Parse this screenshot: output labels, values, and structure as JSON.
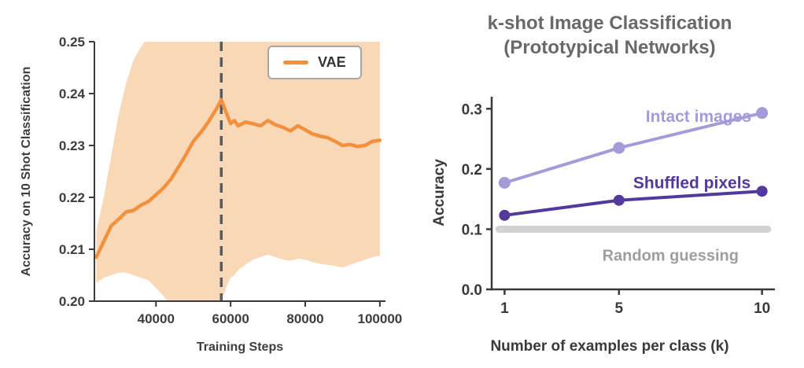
{
  "chart_data": [
    {
      "id": "vae-training-curve",
      "type": "line",
      "title": "",
      "xlabel": "Training Steps",
      "ylabel": "Accuracy on 10 Shot Classification",
      "xlim": [
        23500,
        101500
      ],
      "ylim": [
        0.2,
        0.25
      ],
      "grid": false,
      "xticks": {
        "values": [
          40000,
          60000,
          80000,
          100000
        ],
        "labels": [
          "40000",
          "60000",
          "80000",
          "100000"
        ]
      },
      "yticks": {
        "values": [
          0.2,
          0.21,
          0.22,
          0.23,
          0.24,
          0.25
        ],
        "labels": [
          "0.20",
          "0.21",
          "0.22",
          "0.23",
          "0.24",
          "0.25"
        ]
      },
      "vline": {
        "x": 57500,
        "color": "#5a5a5a",
        "style": "dashed"
      },
      "legend": {
        "position": "top-right",
        "entries": [
          "VAE"
        ]
      },
      "series": [
        {
          "name": "VAE",
          "color": "#f2913d",
          "band_color": "#f9d8b8",
          "width": 4.5,
          "markers": false,
          "x": [
            24000,
            26000,
            28000,
            30000,
            32000,
            34000,
            36000,
            38000,
            40000,
            42000,
            44000,
            46000,
            48000,
            50000,
            52000,
            54000,
            56000,
            57500,
            59000,
            60000,
            61000,
            62000,
            64000,
            66000,
            68000,
            70000,
            72000,
            74000,
            76000,
            78000,
            80000,
            82000,
            84000,
            86000,
            88000,
            90000,
            92000,
            94000,
            96000,
            98000,
            100000
          ],
          "y": [
            0.2085,
            0.2115,
            0.2145,
            0.2158,
            0.2172,
            0.2175,
            0.2185,
            0.2192,
            0.2205,
            0.2218,
            0.2235,
            0.2258,
            0.2282,
            0.2308,
            0.2325,
            0.2345,
            0.2368,
            0.2388,
            0.236,
            0.2342,
            0.2348,
            0.2338,
            0.2345,
            0.2342,
            0.2338,
            0.2348,
            0.234,
            0.2335,
            0.2328,
            0.2338,
            0.233,
            0.2322,
            0.2318,
            0.2315,
            0.2308,
            0.23,
            0.2302,
            0.2298,
            0.23,
            0.2308,
            0.231
          ],
          "band_lo": [
            0.2035,
            0.2045,
            0.205,
            0.2055,
            0.2055,
            0.205,
            0.2045,
            0.204,
            0.2025,
            0.201,
            0.199,
            0.1975,
            0.197,
            0.1975,
            0.198,
            0.1985,
            0.199,
            0.2,
            0.203,
            0.2045,
            0.205,
            0.206,
            0.207,
            0.208,
            0.2085,
            0.209,
            0.2085,
            0.208,
            0.2078,
            0.2082,
            0.208,
            0.2075,
            0.2072,
            0.207,
            0.2068,
            0.2065,
            0.207,
            0.2075,
            0.208,
            0.2085,
            0.2088
          ],
          "band_hi": [
            0.2135,
            0.22,
            0.228,
            0.236,
            0.242,
            0.2465,
            0.249,
            0.251,
            0.252,
            0.253,
            0.2535,
            0.254,
            0.2545,
            0.255,
            0.255,
            0.2555,
            0.2555,
            0.2555,
            0.255,
            0.255,
            0.2548,
            0.2545,
            0.2545,
            0.2542,
            0.254,
            0.254,
            0.2538,
            0.2535,
            0.2532,
            0.2532,
            0.253,
            0.2528,
            0.2528,
            0.2525,
            0.2525,
            0.2522,
            0.2522,
            0.252,
            0.252,
            0.252,
            0.252
          ]
        }
      ]
    },
    {
      "id": "k-shot-classification",
      "type": "line",
      "title_line1": "k-shot Image Classification",
      "title_line2": "(Prototypical Networks)",
      "xlabel": "Number of examples per class (k)",
      "ylabel": "Accuracy",
      "xlim": [
        0.55,
        10.45
      ],
      "ylim": [
        0.0,
        0.32
      ],
      "grid": false,
      "xticks": {
        "values": [
          1,
          5,
          10
        ],
        "labels": [
          "1",
          "5",
          "10"
        ]
      },
      "yticks": {
        "values": [
          0.0,
          0.1,
          0.2,
          0.3
        ],
        "labels": [
          "0.0",
          "0.1",
          "0.2",
          "0.3"
        ]
      },
      "baseline": {
        "label": "Random guessing",
        "y": 0.1,
        "x_start": 0.8,
        "x_end": 10.2,
        "color": "#d2d2d2",
        "width": 9
      },
      "series": [
        {
          "name": "Intact images",
          "color": "#a49cd8",
          "width": 4,
          "markers": true,
          "marker_r": 7.5,
          "x": [
            1,
            5,
            10
          ],
          "y": [
            0.177,
            0.235,
            0.293
          ]
        },
        {
          "name": "Shuffled pixels",
          "color": "#53399b",
          "width": 4,
          "markers": true,
          "marker_r": 7,
          "x": [
            1,
            5,
            10
          ],
          "y": [
            0.123,
            0.148,
            0.163
          ]
        }
      ],
      "annotations": [
        {
          "text": "Intact images",
          "x": 7.78,
          "y": 0.278,
          "color": "#a49cd8",
          "size": 21
        },
        {
          "text": "Shuffled pixels",
          "x": 7.55,
          "y": 0.168,
          "color": "#53399b",
          "size": 21
        },
        {
          "text": "Random guessing",
          "x": 6.8,
          "y": 0.048,
          "color": "#9e9e9e",
          "size": 20
        }
      ]
    }
  ]
}
